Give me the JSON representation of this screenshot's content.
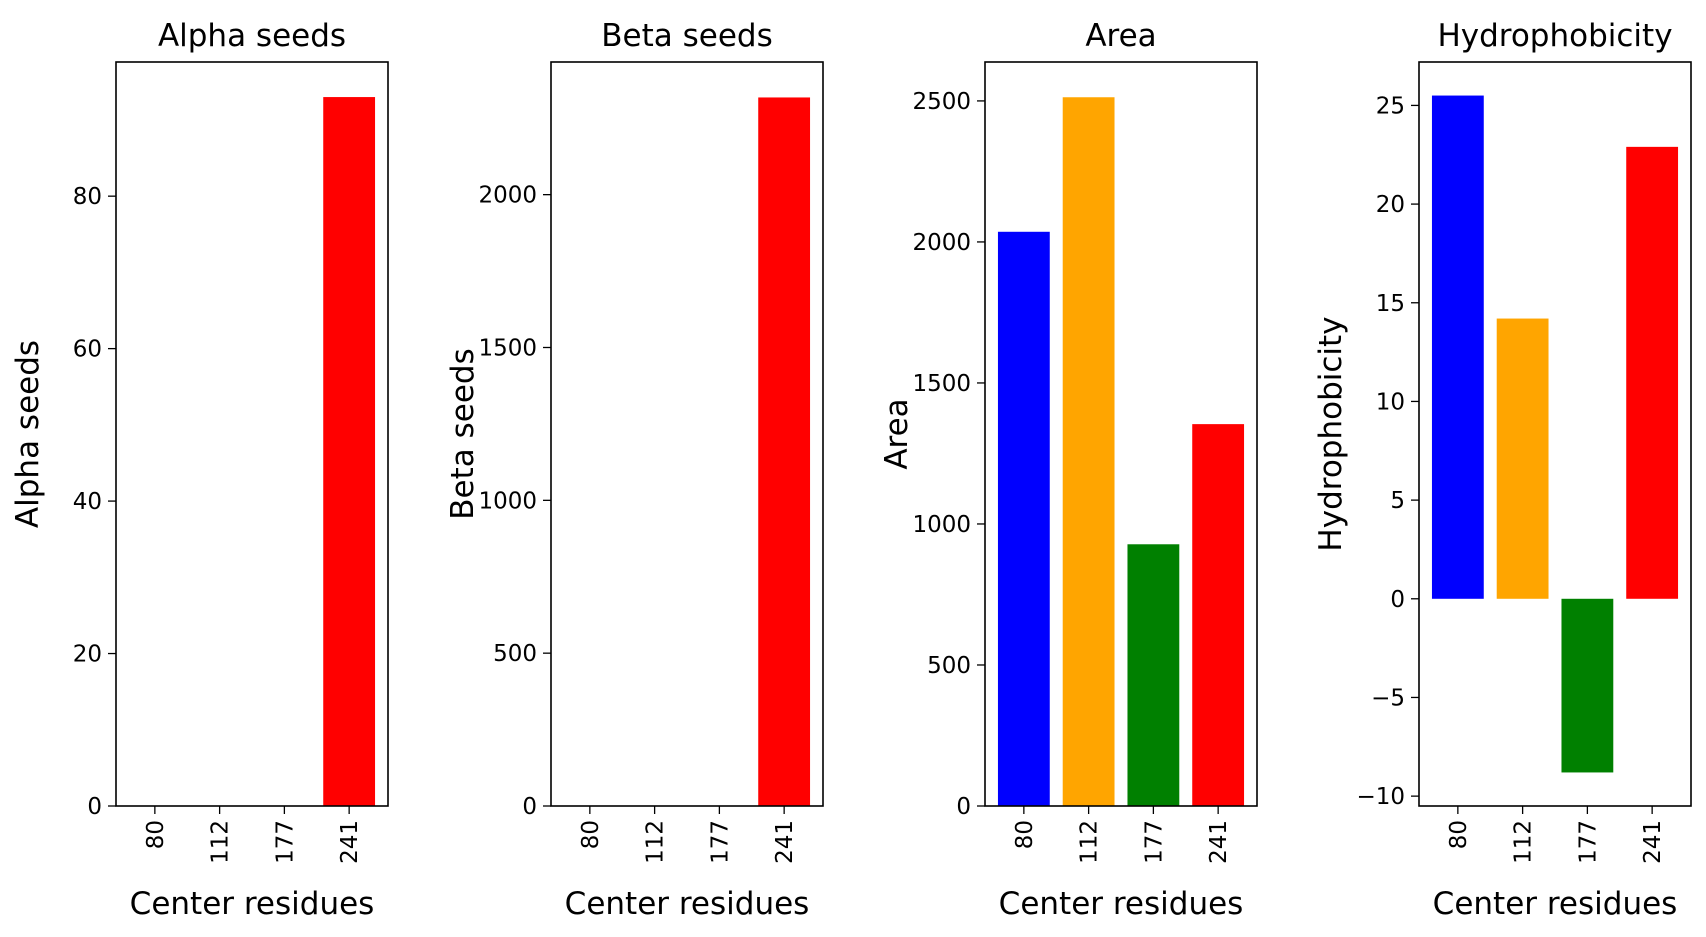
{
  "chart_data": [
    {
      "type": "bar",
      "title": "Alpha seeds",
      "xlabel": "Center residues",
      "ylabel": "Alpha seeds",
      "categories": [
        "80",
        "112",
        "177",
        "241"
      ],
      "values": [
        0,
        0,
        0,
        93
      ],
      "colors": [
        "#0000ff",
        "#ffa500",
        "#008000",
        "#ff0000"
      ],
      "ylim": [
        0,
        97.6
      ],
      "yticks": [
        0,
        20,
        40,
        60,
        80
      ],
      "ytick_labels": [
        "0",
        "20",
        "40",
        "60",
        "80"
      ],
      "grid": false
    },
    {
      "type": "bar",
      "title": "Beta seeds",
      "xlabel": "Center residues",
      "ylabel": "Beta seeds",
      "categories": [
        "80",
        "112",
        "177",
        "241"
      ],
      "values": [
        0,
        0,
        0,
        2318
      ],
      "colors": [
        "#0000ff",
        "#ffa500",
        "#008000",
        "#ff0000"
      ],
      "ylim": [
        0,
        2434
      ],
      "yticks": [
        0,
        500,
        1000,
        1500,
        2000
      ],
      "ytick_labels": [
        "0",
        "500",
        "1000",
        "1500",
        "2000"
      ],
      "grid": false
    },
    {
      "type": "bar",
      "title": "Area",
      "xlabel": "Center residues",
      "ylabel": "Area",
      "categories": [
        "80",
        "112",
        "177",
        "241"
      ],
      "values": [
        2036,
        2513,
        928,
        1354
      ],
      "colors": [
        "#0000ff",
        "#ffa500",
        "#008000",
        "#ff0000"
      ],
      "ylim": [
        0,
        2638
      ],
      "yticks": [
        0,
        500,
        1000,
        1500,
        2000,
        2500
      ],
      "ytick_labels": [
        "0",
        "500",
        "1000",
        "1500",
        "2000",
        "2500"
      ],
      "grid": false
    },
    {
      "type": "bar",
      "title": "Hydrophobicity",
      "xlabel": "Center residues",
      "ylabel": "Hydrophobicity",
      "categories": [
        "80",
        "112",
        "177",
        "241"
      ],
      "values": [
        25.5,
        14.2,
        -8.8,
        22.9
      ],
      "colors": [
        "#0000ff",
        "#ffa500",
        "#008000",
        "#ff0000"
      ],
      "ylim": [
        -10.5,
        27.2
      ],
      "yticks": [
        -10,
        -5,
        0,
        5,
        10,
        15,
        20,
        25
      ],
      "ytick_labels": [
        "−10",
        "−5",
        "0",
        "5",
        "10",
        "15",
        "20",
        "25"
      ],
      "grid": false
    }
  ]
}
